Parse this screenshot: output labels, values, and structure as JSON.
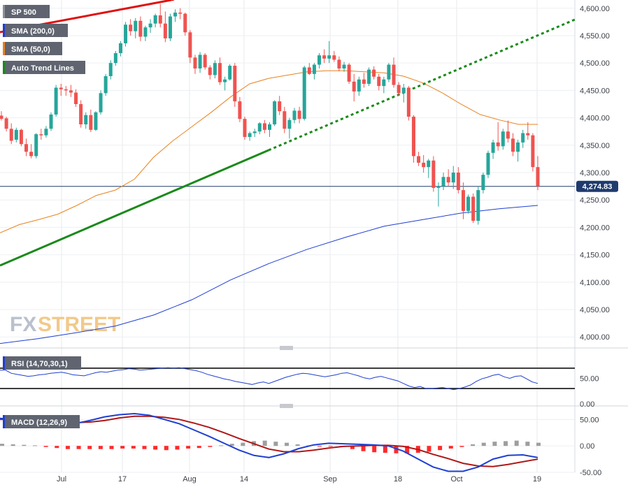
{
  "legend": {
    "symbol": "SP 500",
    "sma200": "SMA (200,0)",
    "sma50": "SMA (50,0)",
    "trend": "Auto Trend Lines",
    "rsi": "RSI (14,70,30,1)",
    "macd": "MACD (12,26,9)"
  },
  "watermark": {
    "fx": "FX",
    "street": "STREET"
  },
  "colors": {
    "up": "#26a69a",
    "down": "#ef5350",
    "sma200": "#1f3fd1",
    "sma50": "#e8821e",
    "trend_up": "#1a8a1a",
    "trend_down": "#e01010",
    "current_line": "#1f3b6e",
    "macd_line": "#1f3fd1",
    "signal_line": "#b01818",
    "hist_pos": "#9e9e9e",
    "hist_neg": "#ff2a2a"
  },
  "chart_data": [
    {
      "type": "candlestick",
      "title": "SP 500",
      "x_ticks": [
        "Jul",
        "17",
        "Aug",
        "14",
        "Sep",
        "18",
        "Oct",
        "19"
      ],
      "ylim": [
        3985,
        4615
      ],
      "y_ticks": [
        "4,000.00",
        "4,050.00",
        "4,100.00",
        "4,150.00",
        "4,200.00",
        "4,250.00",
        "4,300.00",
        "4,350.00",
        "4,400.00",
        "4,450.00",
        "4,500.00",
        "4,550.00",
        "4,600.00"
      ],
      "current_value": "4,274.83",
      "current_value_num": 4274.83,
      "ohlc": [
        [
          4404,
          4412,
          4395,
          4398
        ],
        [
          4399,
          4402,
          4375,
          4380
        ],
        [
          4380,
          4390,
          4352,
          4358
        ],
        [
          4360,
          4382,
          4355,
          4378
        ],
        [
          4378,
          4380,
          4348,
          4352
        ],
        [
          4352,
          4362,
          4330,
          4338
        ],
        [
          4338,
          4352,
          4326,
          4330
        ],
        [
          4330,
          4372,
          4326,
          4370
        ],
        [
          4370,
          4380,
          4360,
          4368
        ],
        [
          4368,
          4385,
          4364,
          4380
        ],
        [
          4380,
          4410,
          4376,
          4406
        ],
        [
          4406,
          4460,
          4402,
          4455
        ],
        [
          4455,
          4462,
          4440,
          4452
        ],
        [
          4452,
          4458,
          4440,
          4450
        ],
        [
          4450,
          4460,
          4438,
          4446
        ],
        [
          4446,
          4452,
          4420,
          4425
        ],
        [
          4425,
          4432,
          4382,
          4388
        ],
        [
          4388,
          4410,
          4380,
          4405
        ],
        [
          4405,
          4415,
          4374,
          4378
        ],
        [
          4378,
          4412,
          4376,
          4410
        ],
        [
          4410,
          4450,
          4406,
          4445
        ],
        [
          4445,
          4480,
          4440,
          4476
        ],
        [
          4476,
          4505,
          4470,
          4500
        ],
        [
          4500,
          4522,
          4495,
          4518
        ],
        [
          4518,
          4540,
          4512,
          4536
        ],
        [
          4536,
          4575,
          4530,
          4570
        ],
        [
          4570,
          4580,
          4550,
          4558
        ],
        [
          4558,
          4582,
          4545,
          4577
        ],
        [
          4577,
          4585,
          4540,
          4548
        ],
        [
          4548,
          4568,
          4540,
          4565
        ],
        [
          4565,
          4580,
          4555,
          4572
        ],
        [
          4572,
          4590,
          4565,
          4587
        ],
        [
          4587,
          4608,
          4565,
          4572
        ],
        [
          4572,
          4594,
          4538,
          4545
        ],
        [
          4545,
          4590,
          4540,
          4585
        ],
        [
          4585,
          4598,
          4575,
          4592
        ],
        [
          4592,
          4600,
          4580,
          4590
        ],
        [
          4590,
          4592,
          4550,
          4556
        ],
        [
          4556,
          4560,
          4500,
          4510
        ],
        [
          4510,
          4515,
          4480,
          4490
        ],
        [
          4490,
          4520,
          4482,
          4515
        ],
        [
          4515,
          4518,
          4488,
          4492
        ],
        [
          4492,
          4496,
          4470,
          4478
        ],
        [
          4478,
          4505,
          4472,
          4500
        ],
        [
          4500,
          4510,
          4460,
          4465
        ],
        [
          4465,
          4475,
          4450,
          4470
        ],
        [
          4470,
          4498,
          4468,
          4495
        ],
        [
          4495,
          4500,
          4420,
          4430
        ],
        [
          4430,
          4438,
          4392,
          4398
        ],
        [
          4398,
          4402,
          4360,
          4365
        ],
        [
          4365,
          4375,
          4358,
          4372
        ],
        [
          4372,
          4380,
          4365,
          4375
        ],
        [
          4375,
          4392,
          4370,
          4390
        ],
        [
          4390,
          4396,
          4372,
          4378
        ],
        [
          4378,
          4392,
          4365,
          4388
        ],
        [
          4388,
          4432,
          4385,
          4430
        ],
        [
          4430,
          4440,
          4405,
          4412
        ],
        [
          4412,
          4420,
          4372,
          4380
        ],
        [
          4380,
          4400,
          4362,
          4396
        ],
        [
          4396,
          4418,
          4390,
          4413
        ],
        [
          4413,
          4420,
          4390,
          4398
        ],
        [
          4398,
          4495,
          4395,
          4492
        ],
        [
          4492,
          4500,
          4478,
          4480
        ],
        [
          4480,
          4500,
          4470,
          4497
        ],
        [
          4497,
          4518,
          4490,
          4514
        ],
        [
          4514,
          4525,
          4500,
          4508
        ],
        [
          4508,
          4540,
          4500,
          4514
        ],
        [
          4514,
          4522,
          4502,
          4506
        ],
        [
          4506,
          4512,
          4485,
          4490
        ],
        [
          4490,
          4502,
          4484,
          4497
        ],
        [
          4497,
          4500,
          4462,
          4466
        ],
        [
          4466,
          4480,
          4430,
          4448
        ],
        [
          4448,
          4475,
          4440,
          4470
        ],
        [
          4470,
          4482,
          4455,
          4462
        ],
        [
          4462,
          4492,
          4458,
          4488
        ],
        [
          4488,
          4494,
          4470,
          4475
        ],
        [
          4475,
          4480,
          4450,
          4458
        ],
        [
          4458,
          4475,
          4445,
          4470
        ],
        [
          4470,
          4500,
          4465,
          4497
        ],
        [
          4497,
          4510,
          4455,
          4460
        ],
        [
          4460,
          4465,
          4440,
          4445
        ],
        [
          4445,
          4462,
          4428,
          4455
        ],
        [
          4455,
          4458,
          4395,
          4402
        ],
        [
          4402,
          4405,
          4318,
          4330
        ],
        [
          4330,
          4338,
          4312,
          4318
        ],
        [
          4318,
          4332,
          4300,
          4310
        ],
        [
          4310,
          4325,
          4290,
          4322
        ],
        [
          4322,
          4330,
          4265,
          4272
        ],
        [
          4272,
          4282,
          4238,
          4275
        ],
        [
          4275,
          4300,
          4268,
          4292
        ],
        [
          4292,
          4306,
          4276,
          4282
        ],
        [
          4282,
          4312,
          4270,
          4300
        ],
        [
          4300,
          4310,
          4262,
          4268
        ],
        [
          4268,
          4282,
          4215,
          4230
        ],
        [
          4230,
          4260,
          4225,
          4256
        ],
        [
          4256,
          4262,
          4208,
          4212
        ],
        [
          4212,
          4275,
          4205,
          4268
        ],
        [
          4268,
          4300,
          4262,
          4296
        ],
        [
          4296,
          4340,
          4290,
          4336
        ],
        [
          4336,
          4360,
          4325,
          4355
        ],
        [
          4355,
          4392,
          4340,
          4348
        ],
        [
          4348,
          4380,
          4342,
          4375
        ],
        [
          4375,
          4395,
          4355,
          4362
        ],
        [
          4362,
          4372,
          4330,
          4338
        ],
        [
          4338,
          4360,
          4320,
          4355
        ],
        [
          4355,
          4378,
          4345,
          4372
        ],
        [
          4372,
          4392,
          4360,
          4368
        ],
        [
          4368,
          4372,
          4302,
          4310
        ],
        [
          4310,
          4330,
          4268,
          4275
        ]
      ],
      "sma200": [
        3988,
        3997,
        4008,
        4020,
        4040,
        4068,
        4104,
        4134,
        4160,
        4182,
        4202,
        4214,
        4226,
        4234,
        4240
      ],
      "sma50": [
        4190,
        4205,
        4214,
        4224,
        4240,
        4258,
        4268,
        4288,
        4328,
        4358,
        4384,
        4410,
        4438,
        4462,
        4472,
        4478,
        4484,
        4486,
        4486,
        4484,
        4482,
        4476,
        4464,
        4446,
        4425,
        4406,
        4396,
        4388,
        4388
      ]
    },
    {
      "type": "line",
      "title": "RSI (14,70,30,1)",
      "ylim": [
        0,
        100
      ],
      "y_ticks": [
        "0.00",
        "50.00"
      ],
      "levels": [
        70,
        30
      ],
      "values": [
        66,
        66,
        60,
        58,
        56,
        54,
        55,
        57,
        58,
        60,
        61,
        62,
        60,
        57,
        56,
        55,
        58,
        61,
        63,
        62,
        64,
        66,
        67,
        69,
        68,
        66,
        67,
        68,
        69,
        70,
        71,
        70,
        71,
        69,
        67,
        65,
        62,
        58,
        55,
        52,
        49,
        47,
        44,
        42,
        40,
        38,
        41,
        43,
        40,
        44,
        48,
        52,
        55,
        58,
        60,
        59,
        57,
        55,
        53,
        55,
        57,
        60,
        61,
        58,
        55,
        51,
        49,
        52,
        54,
        51,
        48,
        45,
        40,
        35,
        32,
        34,
        30,
        30,
        31,
        32,
        30,
        28,
        30,
        33,
        37,
        44,
        49,
        52,
        56,
        58,
        53,
        50,
        54,
        55,
        49,
        43,
        40
      ]
    },
    {
      "type": "line",
      "title": "MACD (12,26,9)",
      "ylim": [
        -50,
        65
      ],
      "y_ticks": [
        "-50.00",
        "0.00",
        "50.00"
      ],
      "macd": [
        52,
        50,
        45,
        40,
        38,
        42,
        48,
        55,
        59,
        61,
        58,
        50,
        42,
        30,
        18,
        5,
        -8,
        -18,
        -22,
        -15,
        -5,
        2,
        5,
        4,
        3,
        2,
        0,
        -10,
        -25,
        -40,
        -48,
        -48,
        -40,
        -25,
        -18,
        -17,
        -22
      ],
      "signal": [
        50,
        50,
        49,
        47,
        45,
        44,
        45,
        48,
        53,
        56,
        56,
        54,
        50,
        43,
        35,
        25,
        14,
        4,
        -6,
        -11,
        -11,
        -8,
        -4,
        -1,
        0,
        1,
        1,
        -1,
        -7,
        -16,
        -24,
        -33,
        -38,
        -39,
        -35,
        -30,
        -25
      ],
      "histogram": [
        4,
        3,
        2,
        1,
        -2,
        -4,
        -6,
        -6,
        -6,
        -6,
        -6,
        -5,
        -5,
        -6,
        -7,
        -8,
        -7,
        -5,
        -4,
        -2,
        1,
        4,
        6,
        9,
        10,
        8,
        6,
        3,
        1,
        -1,
        -1,
        -2,
        -6,
        -10,
        -12,
        -13,
        -14,
        -14,
        -13,
        -11,
        -8,
        -5,
        -2,
        3,
        6,
        8,
        9,
        10,
        8,
        6
      ]
    }
  ]
}
